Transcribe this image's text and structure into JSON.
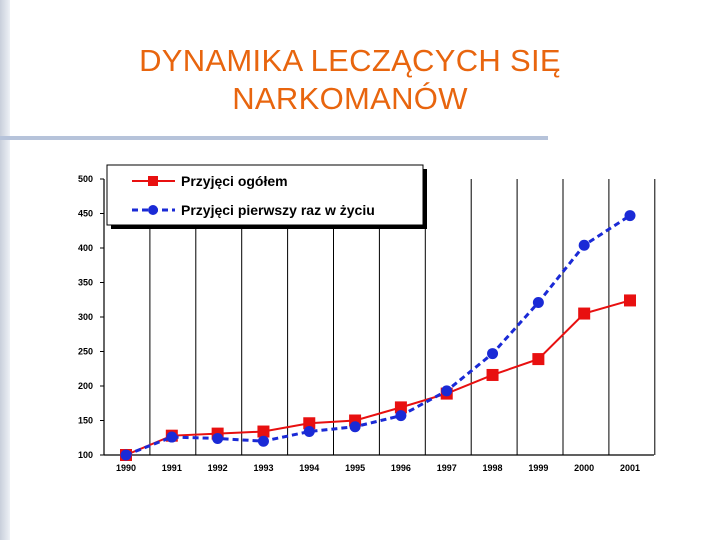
{
  "slide": {
    "title_line1": "DYNAMIKA LECZĄCYCH SIĘ",
    "title_line2": "NARKOMANÓW"
  },
  "colors": {
    "title": "#e8650e",
    "series_total": "#e81010",
    "series_first": "#1a2ad6",
    "rule": "#b6c3da"
  },
  "chart_data": {
    "type": "line",
    "title": "",
    "xlabel": "",
    "ylabel": "",
    "x": [
      "1990",
      "1991",
      "1992",
      "1993",
      "1994",
      "1995",
      "1996",
      "1997",
      "1998",
      "1999",
      "2000",
      "2001"
    ],
    "ylim": [
      100,
      500
    ],
    "yticks": [
      100,
      150,
      200,
      250,
      300,
      350,
      400,
      450,
      500
    ],
    "grid": "vertical",
    "legend": "top-left",
    "series": [
      {
        "name": "Przyjęci ogółem",
        "style": "solid",
        "marker": "square",
        "values": [
          100,
          128,
          131,
          134,
          146,
          150,
          169,
          189,
          216,
          239,
          305,
          324
        ]
      },
      {
        "name": "Przyjęci pierwszy raz w życiu",
        "style": "dashed",
        "marker": "circle",
        "values": [
          100,
          126,
          124,
          120,
          134,
          141,
          157,
          193,
          247,
          321,
          404,
          447
        ]
      }
    ]
  }
}
